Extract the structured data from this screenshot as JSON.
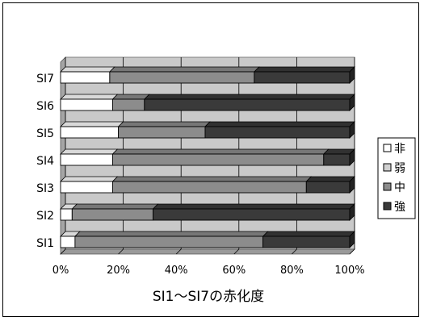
{
  "chart_data": {
    "type": "bar",
    "orientation": "horizontal",
    "stacked": "percent",
    "style": "3d",
    "title": "",
    "xlabel": "SI1～SI7の赤化度",
    "ylabel": "",
    "categories": [
      "SI1",
      "SI2",
      "SI3",
      "SI4",
      "SI5",
      "SI6",
      "SI7"
    ],
    "x_ticks": [
      "0%",
      "20%",
      "40%",
      "60%",
      "80%",
      "100%"
    ],
    "xlim": [
      0,
      100
    ],
    "grid": true,
    "legend_position": "right",
    "series": [
      {
        "name": "非",
        "color": "#ffffff",
        "values": [
          5,
          4,
          18,
          18,
          20,
          18,
          17
        ]
      },
      {
        "name": "弱",
        "color": "#d0d0d0",
        "values": [
          0,
          0,
          0,
          0,
          0,
          0,
          0
        ]
      },
      {
        "name": "中",
        "color": "#8c8c8c",
        "values": [
          65,
          28,
          67,
          73,
          30,
          11,
          50
        ]
      },
      {
        "name": "強",
        "color": "#3a3a3a",
        "values": [
          30,
          68,
          15,
          9,
          50,
          71,
          33
        ]
      }
    ]
  }
}
